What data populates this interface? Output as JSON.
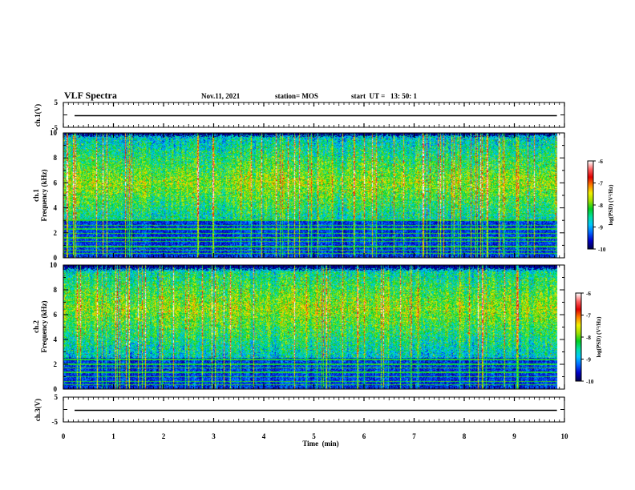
{
  "header": {
    "title": "VLF Spectra",
    "date": "Nov.11, 2021",
    "station": "station= MOS",
    "start": "start  UT =   13: 50: 1"
  },
  "colors": {
    "spectrogram_ramp": [
      "#000050",
      "#0000c8",
      "#0064ff",
      "#00c8ff",
      "#00e0a0",
      "#00d020",
      "#a0e000",
      "#f0f000",
      "#ff8000",
      "#e00000",
      "#ff6060",
      "#ffffff"
    ],
    "trace": "#000000",
    "frame": "#000000"
  },
  "chart_data": [
    {
      "type": "line",
      "panel": "ch1 voltage",
      "ylabel": "ch.1(V)",
      "ylim": [
        -5,
        5
      ],
      "yticks": [
        "5",
        "-5"
      ],
      "xlim": [
        0,
        10
      ],
      "trace_value": 0
    },
    {
      "type": "heatmap",
      "panel": "ch1 spectrogram",
      "ylabel": [
        "ch.1",
        "Frequency (kHz)"
      ],
      "ylim": [
        0,
        10
      ],
      "yticks": [
        "0",
        "2",
        "4",
        "6",
        "8",
        "10"
      ],
      "xlim": [
        0,
        10
      ],
      "data_end_min": 9.85,
      "noise_band_khz": [
        3,
        9.6
      ],
      "spectral_peak_khz": 6,
      "horizontal_lines_khz": [
        0.35,
        0.6,
        0.9,
        1.3,
        1.6,
        1.95,
        2.3,
        2.6,
        3.0
      ],
      "colorbar": {
        "label": "log(PSD) (V²/Hz)",
        "range": [
          -10,
          -6
        ],
        "ticks": [
          "-6",
          "-7",
          "-8",
          "-9",
          "-10"
        ]
      }
    },
    {
      "type": "heatmap",
      "panel": "ch2 spectrogram",
      "ylabel": [
        "ch.2",
        "Frequency (kHz)"
      ],
      "ylim": [
        0,
        10
      ],
      "yticks": [
        "0",
        "2",
        "4",
        "6",
        "8",
        "10"
      ],
      "xlim": [
        0,
        10
      ],
      "data_end_min": 9.85,
      "noise_band_khz": [
        2.5,
        9.5
      ],
      "spectral_peak_khz": 6.5,
      "horizontal_lines_khz": [
        0.35,
        0.6,
        1.0,
        1.35,
        1.7,
        2.0,
        2.4
      ],
      "colorbar": {
        "label": "log(PSD) (V²/Hz)",
        "range": [
          -10,
          -6
        ],
        "ticks": [
          "-6",
          "-7",
          "-8",
          "-9",
          "-10"
        ]
      }
    },
    {
      "type": "line",
      "panel": "ch3 voltage",
      "ylabel": "ch.3(V)",
      "ylim": [
        -5,
        5
      ],
      "yticks": [
        "5",
        "-5"
      ],
      "xlim": [
        0,
        10
      ],
      "trace_value": 0,
      "xlabel": "Time  (min)",
      "xticks": [
        "0",
        "1",
        "2",
        "3",
        "4",
        "5",
        "6",
        "7",
        "8",
        "9",
        "10"
      ]
    }
  ]
}
